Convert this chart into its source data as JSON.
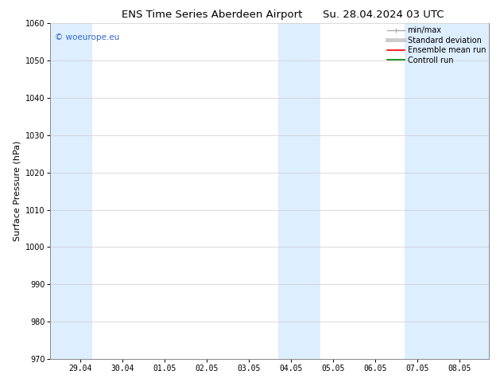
{
  "title_left": "ENS Time Series Aberdeen Airport",
  "title_right": "Su. 28.04.2024 03 UTC",
  "ylabel": "Surface Pressure (hPa)",
  "ylim": [
    970,
    1060
  ],
  "yticks": [
    970,
    980,
    990,
    1000,
    1010,
    1020,
    1030,
    1040,
    1050,
    1060
  ],
  "x_labels": [
    "29.04",
    "30.04",
    "01.05",
    "02.05",
    "03.05",
    "04.05",
    "05.05",
    "06.05",
    "07.05",
    "08.05"
  ],
  "x_positions": [
    0,
    1,
    2,
    3,
    4,
    5,
    6,
    7,
    8,
    9
  ],
  "xlim": [
    -0.7,
    9.7
  ],
  "shaded_bands": [
    {
      "x_start": -0.7,
      "x_end": 0.3
    },
    {
      "x_start": 4.7,
      "x_end": 5.7
    },
    {
      "x_start": 7.7,
      "x_end": 9.7
    }
  ],
  "shade_color": "#ddeeff",
  "background_color": "#ffffff",
  "watermark_text": "© woeurope.eu",
  "watermark_color": "#3366cc",
  "legend_items": [
    {
      "label": "min/max",
      "color": "#aaaaaa",
      "lw": 1.0,
      "style": "errorbar"
    },
    {
      "label": "Standard deviation",
      "color": "#cccccc",
      "lw": 3.5,
      "style": "line"
    },
    {
      "label": "Ensemble mean run",
      "color": "#ff0000",
      "lw": 1.2,
      "style": "line"
    },
    {
      "label": "Controll run",
      "color": "#008800",
      "lw": 1.2,
      "style": "line"
    }
  ],
  "title_fontsize": 9.5,
  "tick_fontsize": 7,
  "ylabel_fontsize": 8,
  "legend_fontsize": 7,
  "watermark_fontsize": 7.5,
  "grid_color": "#cccccc",
  "grid_linewidth": 0.5,
  "spine_color": "#888888"
}
